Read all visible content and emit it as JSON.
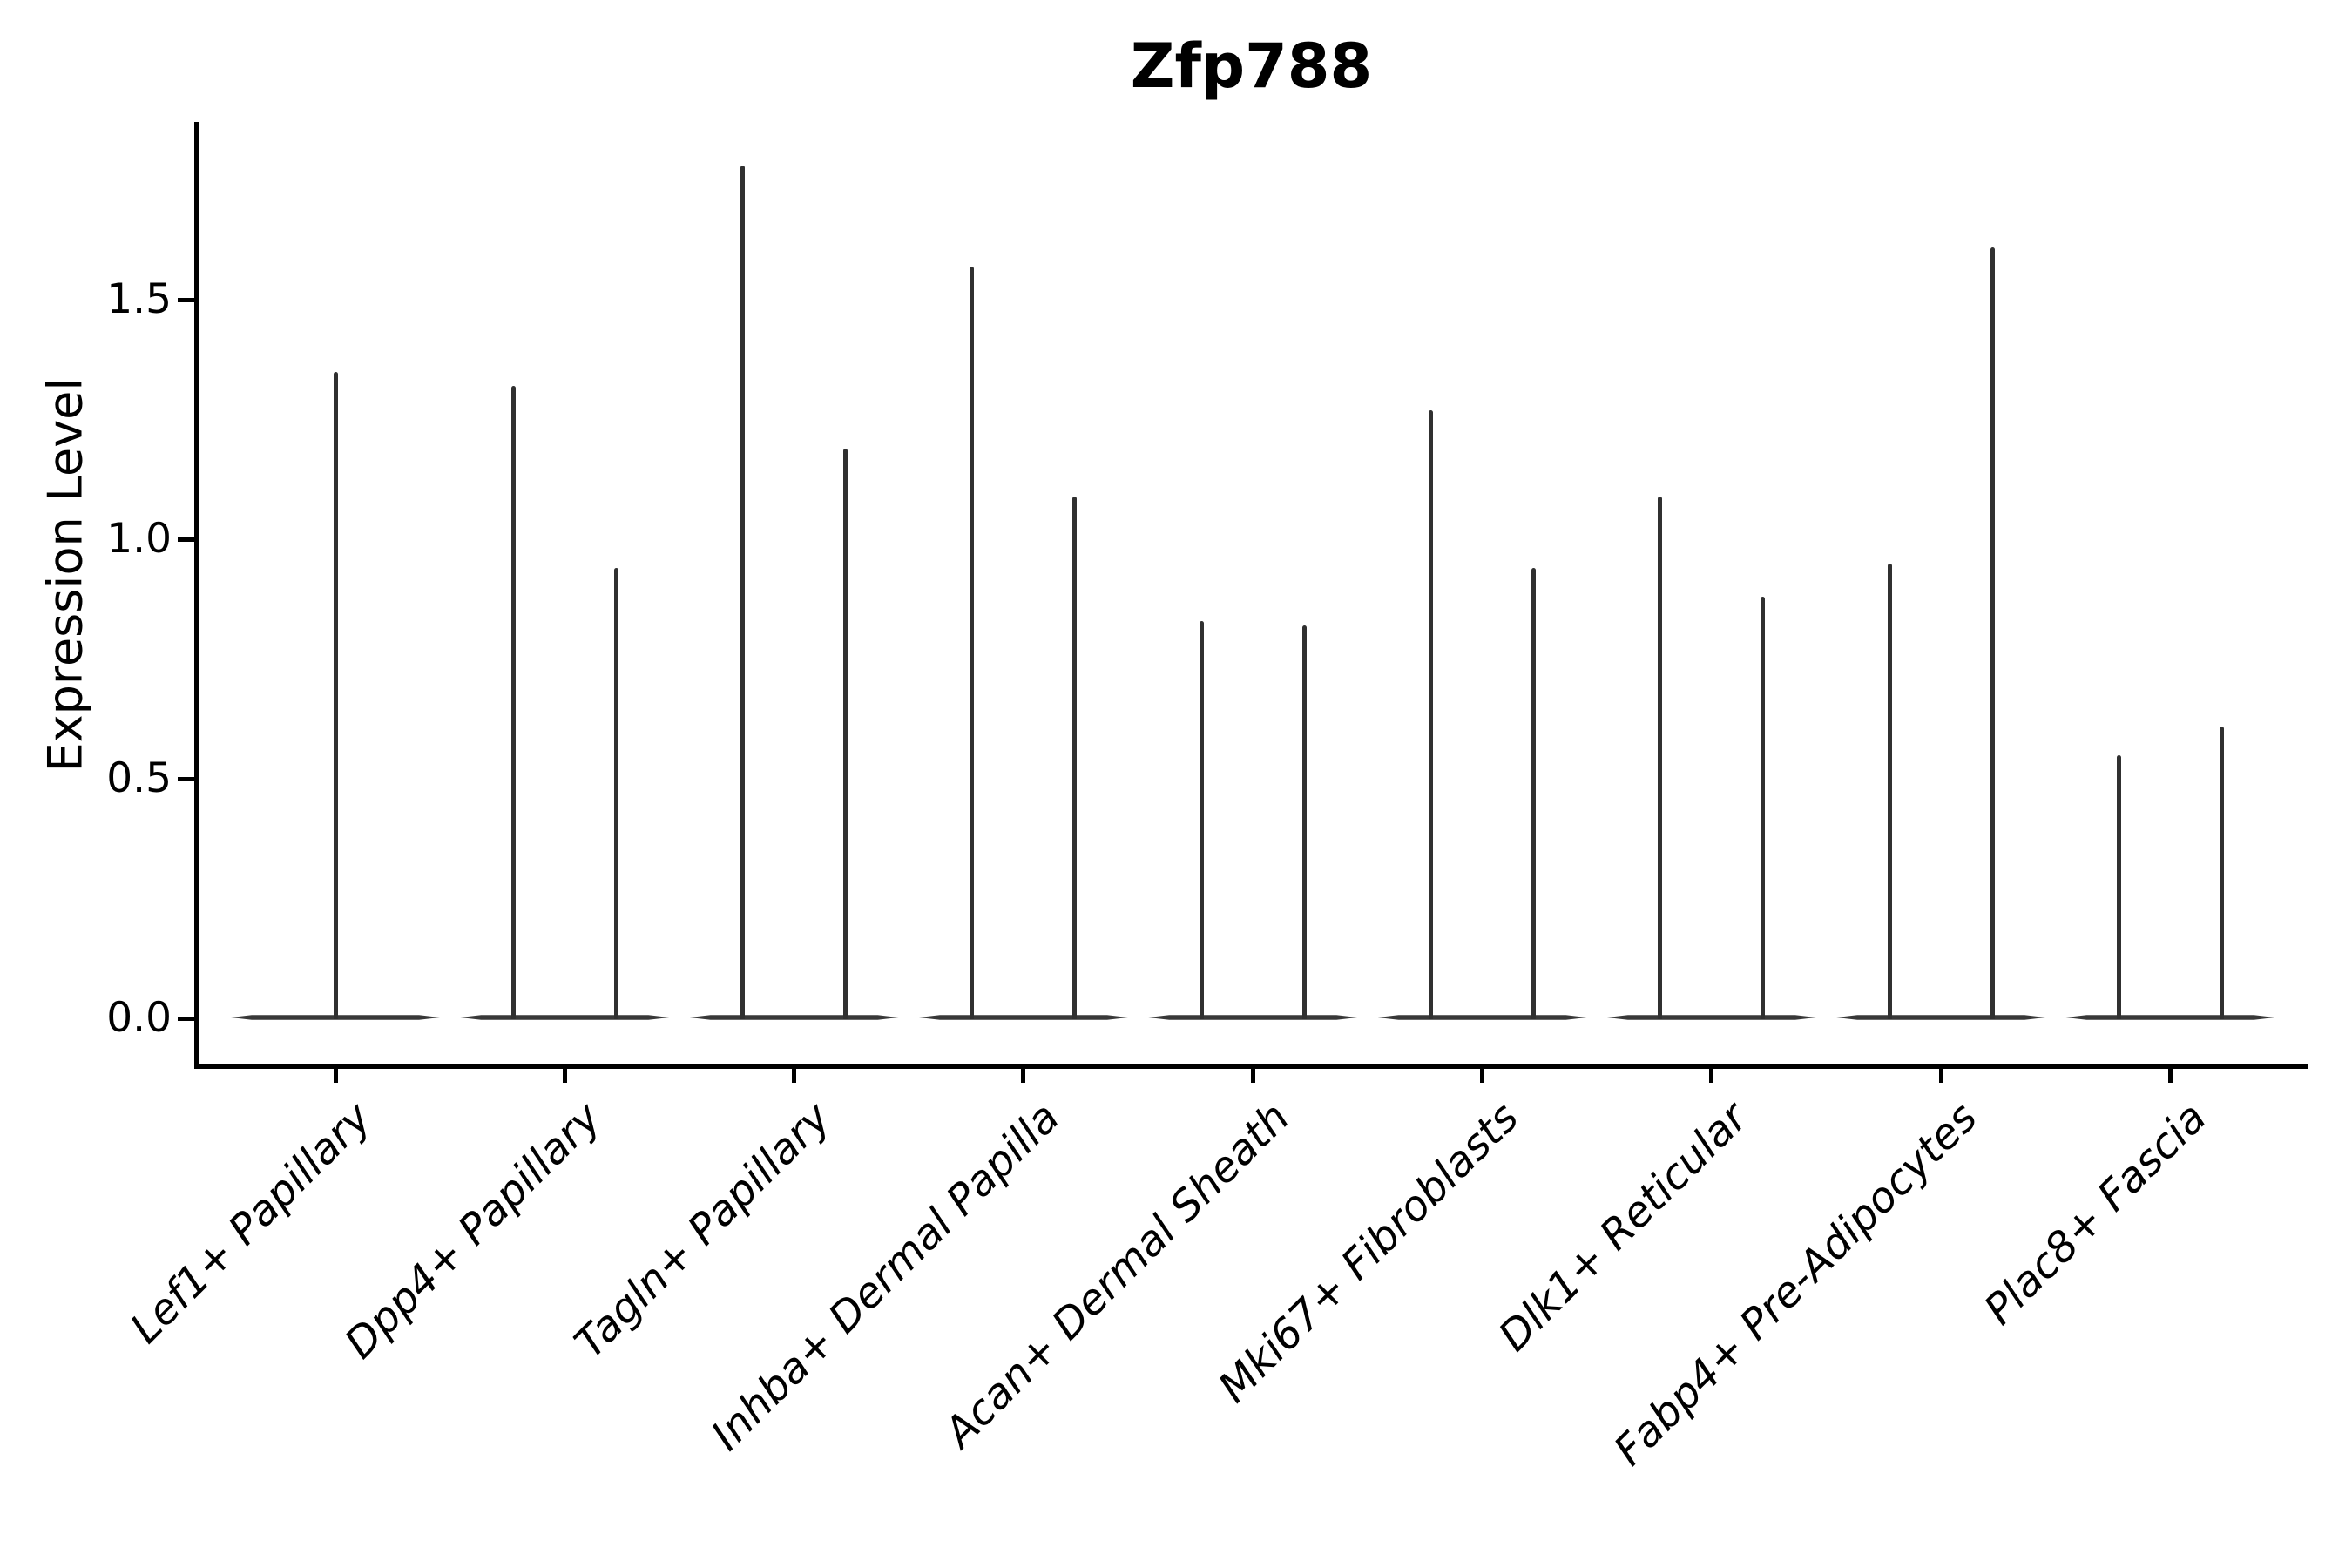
{
  "chart_data": {
    "type": "violin",
    "title": "Zfp788",
    "ylabel": "Expression Level",
    "xlabel": "",
    "yticks": [
      0.0,
      0.5,
      1.0,
      1.5
    ],
    "ytick_labels": [
      "0.0",
      "0.5",
      "1.0",
      "1.5"
    ],
    "ylim": [
      -0.1,
      1.87
    ],
    "grid": false,
    "legend": "none",
    "categories": [
      "Lef1+ Papillary",
      "Dpp4+ Papillary",
      "Tagln+ Papillary",
      "Inhba+ Dermal Papilla",
      "Acan+ Dermal Sheath",
      "Mki67+ Fibroblasts",
      "Dlk1+ Reticular",
      "Fabp4+ Pre-Adipocytes",
      "Plac8+ Fascia"
    ],
    "series": [
      {
        "category": "Lef1+ Papillary",
        "violins": 1,
        "max_expression": [
          1.35
        ]
      },
      {
        "category": "Dpp4+ Papillary",
        "violins": 2,
        "max_expression": [
          1.32,
          0.94
        ]
      },
      {
        "category": "Tagln+ Papillary",
        "violins": 2,
        "max_expression": [
          1.78,
          1.19
        ]
      },
      {
        "category": "Inhba+ Dermal Papilla",
        "violins": 2,
        "max_expression": [
          1.57,
          1.09
        ]
      },
      {
        "category": "Acan+ Dermal Sheath",
        "violins": 2,
        "max_expression": [
          0.83,
          0.82
        ]
      },
      {
        "category": "Mki67+ Fibroblasts",
        "violins": 2,
        "max_expression": [
          1.27,
          0.94
        ]
      },
      {
        "category": "Dlk1+ Reticular",
        "violins": 2,
        "max_expression": [
          1.09,
          0.88
        ]
      },
      {
        "category": "Fabp4+ Pre-Adipocytes",
        "violins": 2,
        "max_expression": [
          0.95,
          1.61
        ]
      },
      {
        "category": "Plac8+ Fascia",
        "violins": 2,
        "max_expression": [
          0.55,
          0.61
        ]
      }
    ],
    "violin_shape_note": "violins collapsed flat at 0 expression with thin spikes reaching max value",
    "style": {
      "violin_color": "#303030",
      "violin_base_color": "#383838",
      "axis_color": "#000000",
      "background": "#ffffff"
    }
  }
}
